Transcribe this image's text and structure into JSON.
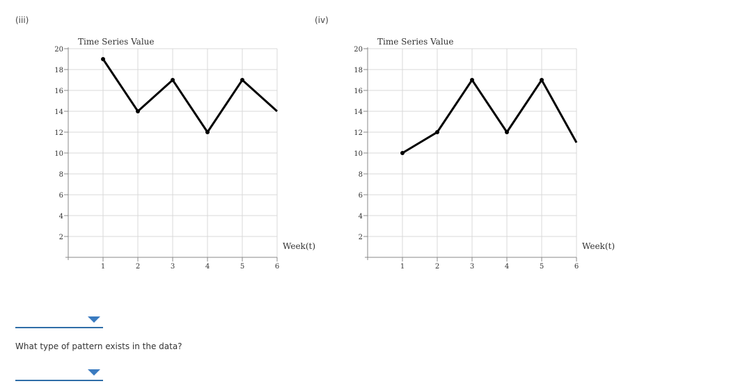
{
  "panels": [
    {
      "label": "(iii)"
    },
    {
      "label": "(iv)"
    }
  ],
  "chart_data": [
    {
      "type": "line",
      "title": "",
      "ylabel": "Time Series Value",
      "xlabel": "Week(t)",
      "x": [
        1,
        2,
        3,
        4,
        5,
        6
      ],
      "values": [
        19,
        14,
        17,
        12,
        17,
        14
      ],
      "xlim": [
        0,
        6
      ],
      "ylim": [
        0,
        20
      ],
      "xticks": [
        "1",
        "2",
        "3",
        "4",
        "5",
        "6"
      ],
      "yticks": [
        "2",
        "4",
        "6",
        "8",
        "10",
        "12",
        "14",
        "16",
        "18",
        "20"
      ],
      "grid": true,
      "color": "#000000"
    },
    {
      "type": "line",
      "title": "",
      "ylabel": "Time Series Value",
      "xlabel": "Week(t)",
      "x": [
        1,
        2,
        3,
        4,
        5,
        6
      ],
      "values": [
        10,
        12,
        17,
        12,
        17,
        11
      ],
      "xlim": [
        0,
        6
      ],
      "ylim": [
        0,
        20
      ],
      "xticks": [
        "1",
        "2",
        "3",
        "4",
        "5",
        "6"
      ],
      "yticks": [
        "2",
        "4",
        "6",
        "8",
        "10",
        "12",
        "14",
        "16",
        "18",
        "20"
      ],
      "grid": true,
      "color": "#000000"
    }
  ],
  "question": {
    "text": "What type of pattern exists in the data?"
  },
  "dropdowns": [
    {
      "selected": "",
      "accent": "#2f6ea8"
    },
    {
      "selected": "",
      "accent": "#2f6ea8"
    }
  ]
}
